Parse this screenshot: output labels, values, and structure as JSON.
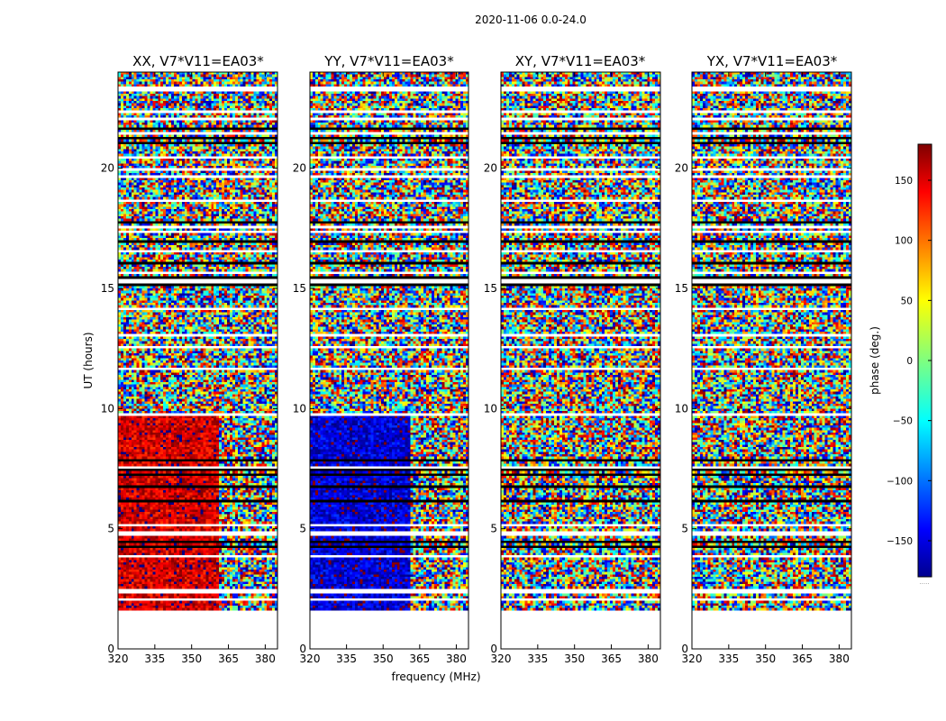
{
  "chart_data": {
    "type": "heatmap",
    "title": "2020-11-06 0.0-24.0",
    "xlabel": "frequency (MHz)",
    "ylabel": "UT (hours)",
    "xlim": [
      320,
      385
    ],
    "ylim": [
      0,
      24
    ],
    "x_ticks": [
      "320",
      "335",
      "350",
      "365",
      "380"
    ],
    "x_tick_values": [
      320,
      335,
      350,
      365,
      380
    ],
    "y_ticks": [
      "0",
      "5",
      "10",
      "15",
      "20"
    ],
    "y_tick_values": [
      0,
      5,
      10,
      15,
      20
    ],
    "panels": [
      {
        "title": "XX, V7*V11=EA03*",
        "phase_offset": 150
      },
      {
        "title": "YY, V7*V11=EA03*",
        "phase_offset": -150
      },
      {
        "title": "XY, V7*V11=EA03*",
        "phase_offset": 0
      },
      {
        "title": "YX, V7*V11=EA03*",
        "phase_offset": 0
      }
    ],
    "data_start_hour": 1.6,
    "data_end_hour": 24,
    "coherent_window_hours": [
      1.6,
      9.6
    ],
    "coherent_freq_split_mhz": 361,
    "colorbar": {
      "label": "phase (deg.)",
      "range": [
        -180,
        180
      ],
      "ticks": [
        "−150",
        "−100",
        "−50",
        "0",
        "50",
        "100",
        "150"
      ],
      "tick_values": [
        -150,
        -100,
        -50,
        0,
        50,
        100,
        150
      ],
      "colormap": "jet",
      "note": "....."
    }
  }
}
